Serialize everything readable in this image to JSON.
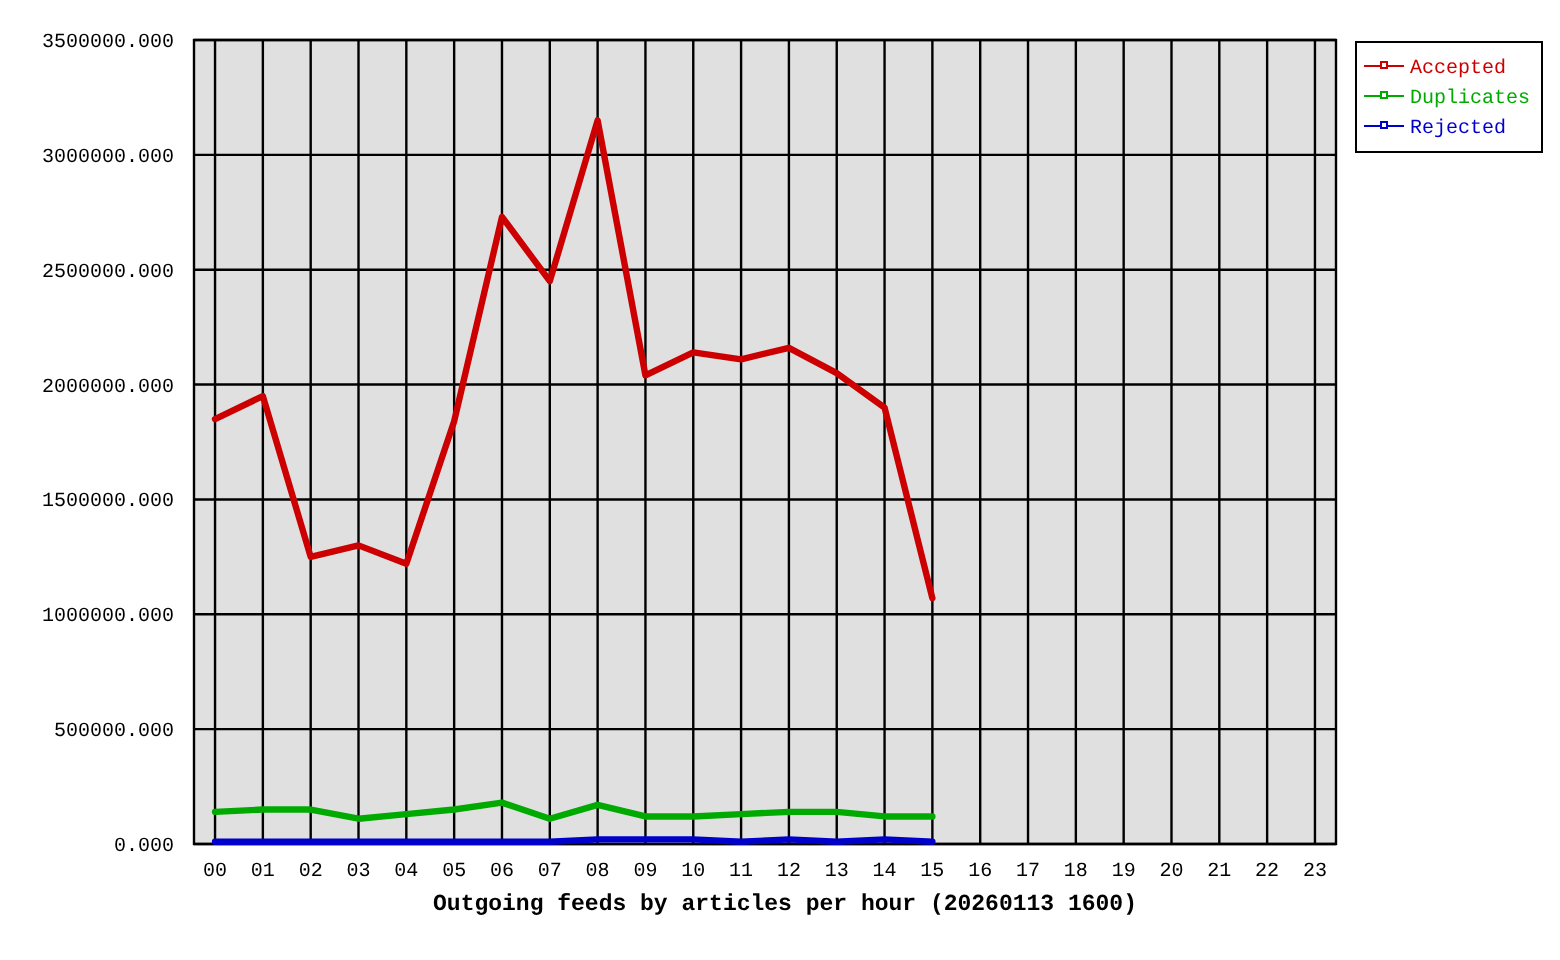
{
  "chart_data": {
    "type": "line",
    "xlabel": "Outgoing feeds by articles per hour (20260113 1600)",
    "categories": [
      "00",
      "01",
      "02",
      "03",
      "04",
      "05",
      "06",
      "07",
      "08",
      "09",
      "10",
      "11",
      "12",
      "13",
      "14",
      "15",
      "16",
      "17",
      "18",
      "19",
      "20",
      "21",
      "22",
      "23"
    ],
    "series": [
      {
        "name": "Accepted",
        "color": "#cc0000",
        "values": [
          1850000,
          1950000,
          1250000,
          1300000,
          1220000,
          1840000,
          2730000,
          2450000,
          3150000,
          2040000,
          2140000,
          2110000,
          2160000,
          2050000,
          1900000,
          1070000,
          null,
          null,
          null,
          null,
          null,
          null,
          null,
          null
        ]
      },
      {
        "name": "Duplicates",
        "color": "#00aa00",
        "values": [
          140000,
          150000,
          150000,
          110000,
          130000,
          150000,
          180000,
          110000,
          170000,
          120000,
          120000,
          130000,
          140000,
          140000,
          120000,
          120000,
          null,
          null,
          null,
          null,
          null,
          null,
          null,
          null
        ]
      },
      {
        "name": "Rejected",
        "color": "#0000cc",
        "values": [
          10000,
          10000,
          10000,
          10000,
          10000,
          10000,
          10000,
          10000,
          20000,
          20000,
          20000,
          10000,
          20000,
          10000,
          20000,
          10000,
          null,
          null,
          null,
          null,
          null,
          null,
          null,
          null
        ]
      }
    ],
    "ylim": [
      0,
      3500000
    ],
    "yticks": [
      {
        "value": 0,
        "label": "0.000"
      },
      {
        "value": 500000,
        "label": "500000.000"
      },
      {
        "value": 1000000,
        "label": "1000000.000"
      },
      {
        "value": 1500000,
        "label": "1500000.000"
      },
      {
        "value": 2000000,
        "label": "2000000.000"
      },
      {
        "value": 2500000,
        "label": "2500000.000"
      },
      {
        "value": 3000000,
        "label": "3000000.000"
      },
      {
        "value": 3500000,
        "label": "3500000.000"
      }
    ],
    "grid": true,
    "legend": "top right",
    "line_style": "solid"
  }
}
